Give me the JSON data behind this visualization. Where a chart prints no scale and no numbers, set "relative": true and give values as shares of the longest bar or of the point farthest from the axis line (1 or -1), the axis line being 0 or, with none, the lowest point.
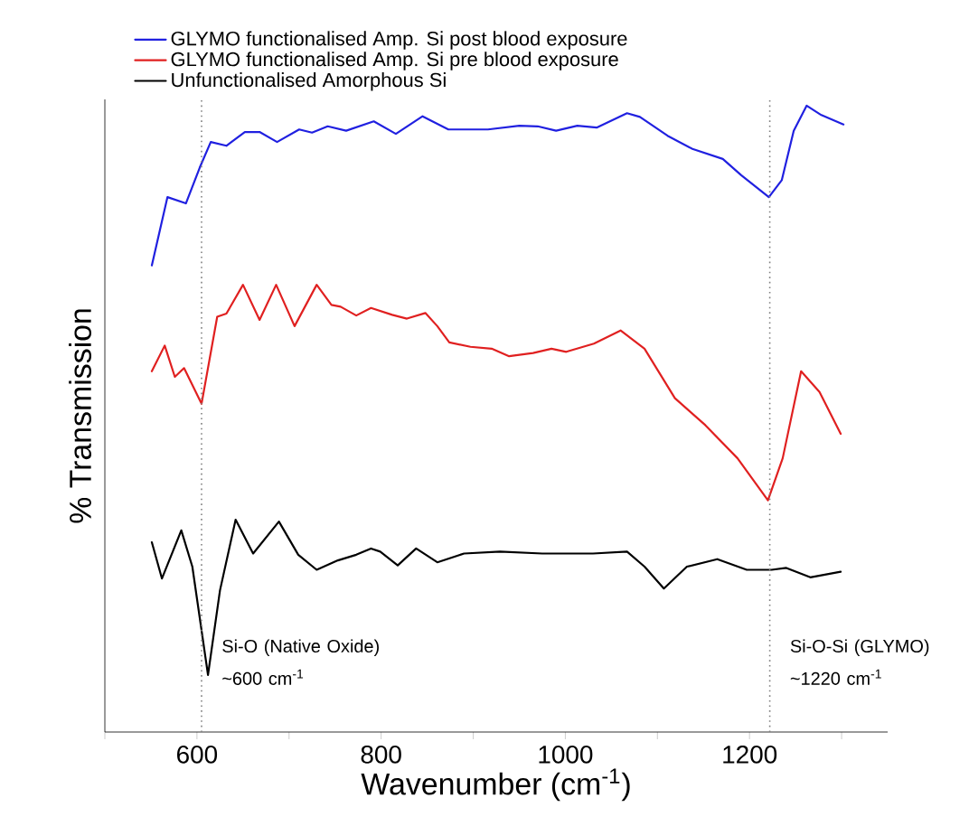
{
  "chart_data": {
    "type": "line",
    "relative": true,
    "xlabel": "Wavenumber (cm$^{-1}$)",
    "ylabel": "% Transmission",
    "xlim": [
      500,
      1350
    ],
    "xticks": [
      {
        "value": 500,
        "label": null
      },
      600,
      {
        "value": 700,
        "label": null
      },
      800,
      {
        "value": 900,
        "label": null
      },
      1000,
      {
        "value": 1100,
        "label": null
      },
      1200,
      {
        "value": 1300,
        "label": null
      }
    ],
    "legend": "top left",
    "grid": false,
    "marker": "none",
    "line_style": "solid",
    "series": [
      {
        "name": "GLYMO functionalised Amp. Si post blood exposure",
        "color": "#2020e0",
        "x": [
          551,
          568,
          588,
          603,
          615,
          632,
          652,
          668,
          687,
          711,
          725,
          742,
          762,
          792,
          816,
          845,
          873,
          916,
          950,
          970,
          990,
          1013,
          1034,
          1067,
          1081,
          1111,
          1138,
          1171,
          1191,
          1221,
          1235,
          1248,
          1262,
          1278,
          1302
        ],
        "values": [
          0.745,
          0.854,
          0.844,
          0.901,
          0.942,
          0.936,
          0.958,
          0.958,
          0.942,
          0.962,
          0.957,
          0.967,
          0.96,
          0.975,
          0.955,
          0.983,
          0.962,
          0.962,
          0.968,
          0.967,
          0.96,
          0.968,
          0.965,
          0.988,
          0.982,
          0.952,
          0.931,
          0.915,
          0.889,
          0.854,
          0.881,
          0.96,
          1,
          0.985,
          0.97
        ]
      },
      {
        "name": "GLYMO functionalised Amp. Si pre blood exposure",
        "color": "#e02020",
        "x": [
          551,
          565,
          576,
          586,
          605,
          622,
          632,
          650,
          668,
          686,
          706,
          730,
          746,
          756,
          773,
          789,
          812,
          828,
          848,
          861,
          874,
          897,
          920,
          939,
          965,
          985,
          1001,
          1031,
          1060,
          1086,
          1119,
          1152,
          1187,
          1220,
          1236,
          1256,
          1276,
          1299
        ],
        "values": [
          0.576,
          0.617,
          0.567,
          0.581,
          0.524,
          0.663,
          0.668,
          0.714,
          0.658,
          0.714,
          0.648,
          0.714,
          0.682,
          0.679,
          0.665,
          0.677,
          0.666,
          0.66,
          0.669,
          0.648,
          0.622,
          0.615,
          0.612,
          0.6,
          0.605,
          0.612,
          0.607,
          0.62,
          0.641,
          0.612,
          0.533,
          0.49,
          0.437,
          0.37,
          0.437,
          0.576,
          0.543,
          0.476
        ]
      },
      {
        "name": "Unfunctionalised Amorphous Si",
        "color": "#000000",
        "x": [
          551,
          562,
          583,
          595,
          612,
          625,
          642,
          661,
          689,
          710,
          730,
          753,
          773,
          789,
          799,
          818,
          838,
          861,
          890,
          929,
          975,
          1030,
          1067,
          1086,
          1107,
          1132,
          1165,
          1197,
          1224,
          1240,
          1266,
          1299
        ],
        "values": [
          0.303,
          0.245,
          0.322,
          0.264,
          0.091,
          0.226,
          0.339,
          0.285,
          0.336,
          0.283,
          0.259,
          0.274,
          0.283,
          0.293,
          0.288,
          0.266,
          0.293,
          0.271,
          0.285,
          0.288,
          0.285,
          0.285,
          0.288,
          0.264,
          0.229,
          0.264,
          0.276,
          0.259,
          0.259,
          0.262,
          0.247,
          0.256
        ]
      }
    ],
    "ref_lines": [
      {
        "axis": "x",
        "value": 605,
        "color": "#808080",
        "line_style": "dotted",
        "label": "Si-O (Native Oxide) ~600 cm$^{-1}$"
      },
      {
        "axis": "x",
        "value": 1222,
        "color": "#808080",
        "line_style": "dotted",
        "label": "Si-O-Si (GLYMO) ~1220 cm$^{-1}$"
      }
    ]
  }
}
